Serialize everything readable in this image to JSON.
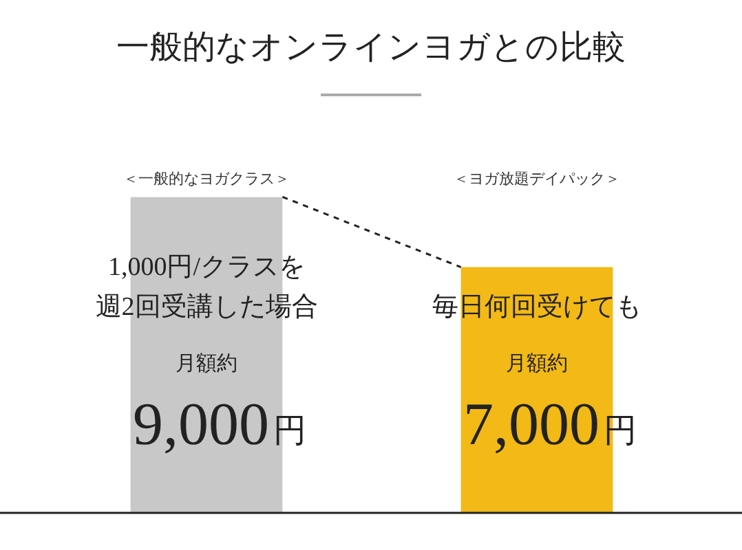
{
  "chart_data": {
    "type": "bar",
    "title": "一般的なオンラインヨガとの比較",
    "categories": [
      "＜一般的なヨガクラス＞",
      "＜ヨガ放題デイパック＞"
    ],
    "values": [
      9000,
      7000
    ],
    "colors": [
      "#c8c8c8",
      "#f2b917"
    ],
    "value_labels": [
      "9,000円",
      "7,000円"
    ],
    "annotations": [
      "1,000円/クラスを",
      "週2回受講した場合",
      "月額約",
      "毎日何回受けても",
      "月額約"
    ],
    "tick_labels": "x",
    "grid": false,
    "legend": false
  }
}
